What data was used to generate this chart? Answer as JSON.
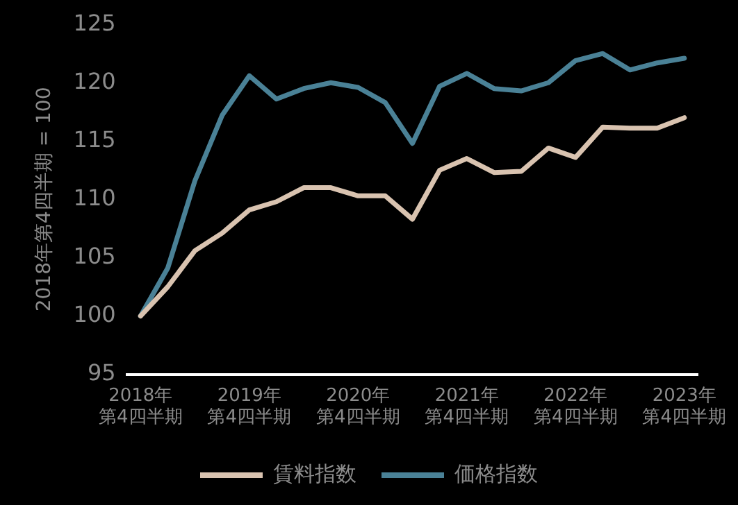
{
  "chart_data": {
    "type": "line",
    "ylabel": "2018年第4四半期 = 100",
    "categories": [
      "2018年第4四半期",
      null,
      null,
      null,
      "2019年第4四半期",
      null,
      null,
      null,
      "2020年第4四半期",
      null,
      null,
      null,
      "2021年第4四半期",
      null,
      null,
      null,
      "2022年第4四半期",
      null,
      null,
      null,
      "2023年第4四半期"
    ],
    "series": [
      {
        "name": "賃料指数",
        "color": "#d9c3b0",
        "values": [
          100,
          102.5,
          105.6,
          107.1,
          109.1,
          109.8,
          111.0,
          111.0,
          110.3,
          110.3,
          108.3,
          112.5,
          113.5,
          112.3,
          112.4,
          114.4,
          113.6,
          116.2,
          116.1,
          116.1,
          117.0
        ]
      },
      {
        "name": "価格指数",
        "color": "#4a8196",
        "values": [
          100,
          104.1,
          111.6,
          117.2,
          120.6,
          118.6,
          119.5,
          120.0,
          119.6,
          118.3,
          114.8,
          119.7,
          120.8,
          119.5,
          119.3,
          120.0,
          121.9,
          122.5,
          121.1,
          121.7,
          122.1
        ]
      }
    ],
    "ylim": [
      95,
      125
    ],
    "yticks": [
      95,
      100,
      105,
      110,
      115,
      120,
      125
    ],
    "grid": false,
    "legend": "bottom",
    "marker": "none",
    "line_style": "solid"
  }
}
